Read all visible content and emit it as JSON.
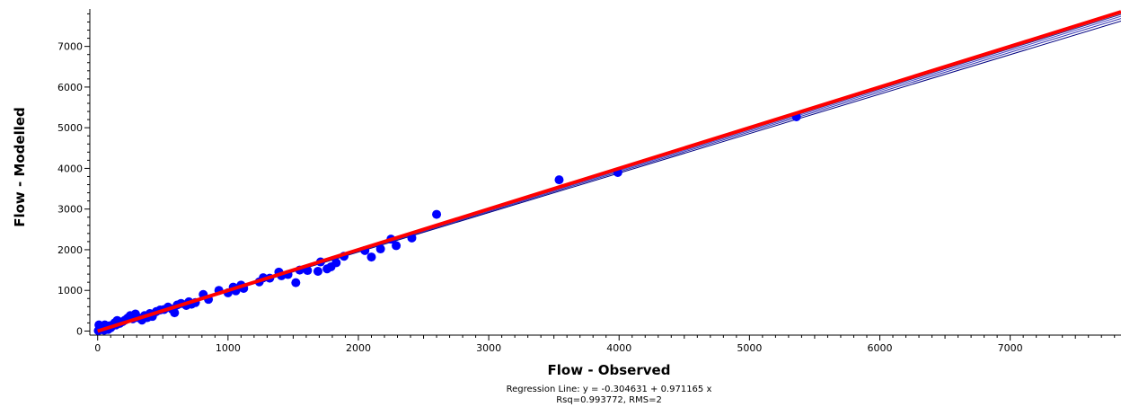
{
  "chart_data": {
    "type": "scatter",
    "xlabel": "Flow - Observed",
    "ylabel": "Flow - Modelled",
    "xlim": [
      -60,
      7850
    ],
    "ylim": [
      -100,
      7920
    ],
    "x_ticks": [
      0,
      1000,
      2000,
      3000,
      4000,
      5000,
      6000,
      7000
    ],
    "y_ticks": [
      0,
      1000,
      2000,
      3000,
      4000,
      5000,
      6000,
      7000
    ],
    "grid": false,
    "regression_text": "Regression Line: y = -0.304631 + 0.971165 x",
    "stats_text": "Rsq=0.993772, RMS=2",
    "colors": {
      "points": "#0000ff",
      "identity_line": "#ff0000",
      "regression_lines": "#000080"
    },
    "regression": {
      "intercept": -0.304631,
      "slope": 0.971165
    },
    "points": [
      [
        5,
        10
      ],
      [
        10,
        150
      ],
      [
        15,
        60
      ],
      [
        20,
        100
      ],
      [
        25,
        40
      ],
      [
        30,
        120
      ],
      [
        40,
        80
      ],
      [
        50,
        20
      ],
      [
        55,
        150
      ],
      [
        60,
        60
      ],
      [
        70,
        100
      ],
      [
        80,
        40
      ],
      [
        90,
        130
      ],
      [
        100,
        80
      ],
      [
        110,
        120
      ],
      [
        120,
        160
      ],
      [
        130,
        200
      ],
      [
        140,
        150
      ],
      [
        150,
        260
      ],
      [
        170,
        190
      ],
      [
        190,
        230
      ],
      [
        210,
        270
      ],
      [
        230,
        320
      ],
      [
        250,
        380
      ],
      [
        270,
        300
      ],
      [
        290,
        420
      ],
      [
        310,
        330
      ],
      [
        340,
        270
      ],
      [
        360,
        380
      ],
      [
        380,
        330
      ],
      [
        400,
        430
      ],
      [
        420,
        360
      ],
      [
        450,
        480
      ],
      [
        480,
        520
      ],
      [
        510,
        530
      ],
      [
        540,
        590
      ],
      [
        570,
        540
      ],
      [
        590,
        450
      ],
      [
        610,
        640
      ],
      [
        640,
        680
      ],
      [
        680,
        630
      ],
      [
        700,
        720
      ],
      [
        720,
        660
      ],
      [
        750,
        700
      ],
      [
        810,
        900
      ],
      [
        850,
        780
      ],
      [
        930,
        1000
      ],
      [
        1000,
        940
      ],
      [
        1040,
        1080
      ],
      [
        1060,
        990
      ],
      [
        1100,
        1130
      ],
      [
        1120,
        1050
      ],
      [
        1240,
        1210
      ],
      [
        1270,
        1310
      ],
      [
        1320,
        1300
      ],
      [
        1390,
        1450
      ],
      [
        1410,
        1360
      ],
      [
        1460,
        1390
      ],
      [
        1520,
        1190
      ],
      [
        1550,
        1500
      ],
      [
        1610,
        1490
      ],
      [
        1690,
        1470
      ],
      [
        1710,
        1700
      ],
      [
        1760,
        1530
      ],
      [
        1790,
        1580
      ],
      [
        1830,
        1680
      ],
      [
        1890,
        1840
      ],
      [
        2050,
        1980
      ],
      [
        2100,
        1820
      ],
      [
        2170,
        2020
      ],
      [
        2250,
        2260
      ],
      [
        2290,
        2100
      ],
      [
        2410,
        2290
      ],
      [
        2600,
        2870
      ],
      [
        3540,
        3720
      ],
      [
        3990,
        3900
      ],
      [
        5360,
        5270
      ]
    ]
  }
}
